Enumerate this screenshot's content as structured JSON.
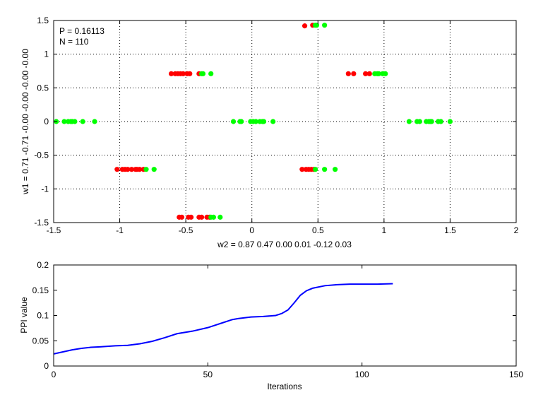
{
  "chart_data": [
    {
      "type": "scatter",
      "annotations": [
        "P = 0.16113",
        "N = 110"
      ],
      "xlabel": "w2 = 0.87  0.47  0.00  0.01  -0.12  0.03",
      "ylabel": "w1 = 0.71  -0.71  -0.00  -0.00  -0.00  -0.00",
      "xlim": [
        -1.5,
        2
      ],
      "ylim": [
        -1.5,
        1.5
      ],
      "xticks": [
        -1.5,
        -1,
        -0.5,
        0,
        0.5,
        1,
        1.5,
        2
      ],
      "xtick_labels": [
        "-1.5",
        "-1",
        "-0.5",
        "0",
        "0.5",
        "1",
        "1.5",
        "2"
      ],
      "yticks": [
        -1.5,
        -1,
        -0.5,
        0,
        0.5,
        1,
        1.5
      ],
      "ytick_labels": [
        "-1.5",
        "-1",
        "-0.5",
        "0",
        "0.5",
        "1",
        "1.5"
      ],
      "grid": true,
      "colors": {
        "class_a": "#ff0000",
        "class_b": "#00ff00"
      },
      "series": [
        {
          "color": "#ff0000",
          "points": [
            [
              0.4,
              1.42
            ],
            [
              0.46,
              1.43
            ],
            [
              -0.61,
              0.71
            ],
            [
              -0.58,
              0.71
            ],
            [
              -0.56,
              0.71
            ],
            [
              -0.54,
              0.71
            ],
            [
              -0.52,
              0.71
            ],
            [
              -0.49,
              0.71
            ],
            [
              -0.47,
              0.71
            ],
            [
              -0.4,
              0.71
            ],
            [
              0.73,
              0.71
            ],
            [
              0.77,
              0.71
            ],
            [
              0.86,
              0.71
            ],
            [
              0.89,
              0.71
            ],
            [
              -1.02,
              -0.71
            ],
            [
              -0.98,
              -0.71
            ],
            [
              -0.96,
              -0.71
            ],
            [
              -0.94,
              -0.71
            ],
            [
              -0.91,
              -0.71
            ],
            [
              -0.88,
              -0.71
            ],
            [
              -0.87,
              -0.71
            ],
            [
              -0.85,
              -0.71
            ],
            [
              -0.82,
              -0.71
            ],
            [
              0.38,
              -0.71
            ],
            [
              0.41,
              -0.71
            ],
            [
              0.43,
              -0.71
            ],
            [
              0.45,
              -0.71
            ],
            [
              0.47,
              -0.71
            ],
            [
              -0.55,
              -1.42
            ],
            [
              -0.53,
              -1.42
            ],
            [
              -0.48,
              -1.42
            ],
            [
              -0.46,
              -1.42
            ],
            [
              -0.4,
              -1.42
            ],
            [
              -0.38,
              -1.42
            ],
            [
              -0.34,
              -1.42
            ],
            [
              -0.32,
              -1.42
            ]
          ]
        },
        {
          "color": "#00ff00",
          "points": [
            [
              0.48,
              1.43
            ],
            [
              0.49,
              1.43
            ],
            [
              0.55,
              1.43
            ],
            [
              -0.38,
              0.71
            ],
            [
              -0.37,
              0.71
            ],
            [
              -0.31,
              0.71
            ],
            [
              0.93,
              0.71
            ],
            [
              0.95,
              0.71
            ],
            [
              0.96,
              0.71
            ],
            [
              0.99,
              0.71
            ],
            [
              1.01,
              0.71
            ],
            [
              -1.48,
              0
            ],
            [
              -1.42,
              0
            ],
            [
              -1.39,
              0
            ],
            [
              -1.37,
              0
            ],
            [
              -1.36,
              0
            ],
            [
              -1.34,
              0
            ],
            [
              -1.28,
              0
            ],
            [
              -1.19,
              0
            ],
            [
              -0.14,
              0
            ],
            [
              -0.09,
              0
            ],
            [
              -0.08,
              0
            ],
            [
              -0.01,
              0
            ],
            [
              0.01,
              0
            ],
            [
              0.03,
              0
            ],
            [
              0.06,
              0
            ],
            [
              0.08,
              0
            ],
            [
              0.09,
              0
            ],
            [
              0.16,
              0
            ],
            [
              1.19,
              0
            ],
            [
              1.25,
              0
            ],
            [
              1.27,
              0
            ],
            [
              1.32,
              0
            ],
            [
              1.34,
              0
            ],
            [
              1.35,
              0
            ],
            [
              1.36,
              0
            ],
            [
              1.41,
              0
            ],
            [
              1.43,
              0
            ],
            [
              1.5,
              0
            ],
            [
              -0.8,
              -0.71
            ],
            [
              -0.74,
              -0.71
            ],
            [
              0.48,
              -0.71
            ],
            [
              0.55,
              -0.71
            ],
            [
              0.63,
              -0.71
            ],
            [
              -0.31,
              -1.42
            ],
            [
              -0.29,
              -1.42
            ],
            [
              -0.24,
              -1.42
            ]
          ]
        }
      ]
    },
    {
      "type": "line",
      "xlabel": "Iterations",
      "ylabel": "PPI value",
      "xlim": [
        0,
        150
      ],
      "ylim": [
        0,
        0.2
      ],
      "xticks": [
        0,
        50,
        100,
        150
      ],
      "xtick_labels": [
        "0",
        "50",
        "100",
        "150"
      ],
      "yticks": [
        0,
        0.05,
        0.1,
        0.15,
        0.2
      ],
      "ytick_labels": [
        "0",
        "0.05",
        "0.1",
        "0.15",
        "0.2"
      ],
      "grid": false,
      "colors": {
        "line": "#0000ff"
      },
      "series": [
        {
          "color": "#0000ff",
          "x": [
            0,
            3,
            6,
            9,
            12,
            15,
            20,
            24,
            28,
            32,
            36,
            40,
            45,
            50,
            55,
            58,
            60,
            64,
            68,
            72,
            74,
            76,
            78,
            80,
            82,
            84,
            88,
            92,
            96,
            100,
            105,
            110
          ],
          "y": [
            0.024,
            0.028,
            0.032,
            0.035,
            0.037,
            0.038,
            0.04,
            0.041,
            0.044,
            0.049,
            0.056,
            0.064,
            0.069,
            0.076,
            0.086,
            0.092,
            0.094,
            0.097,
            0.098,
            0.1,
            0.104,
            0.111,
            0.125,
            0.14,
            0.149,
            0.154,
            0.159,
            0.161,
            0.162,
            0.162,
            0.162,
            0.163
          ]
        }
      ]
    }
  ]
}
